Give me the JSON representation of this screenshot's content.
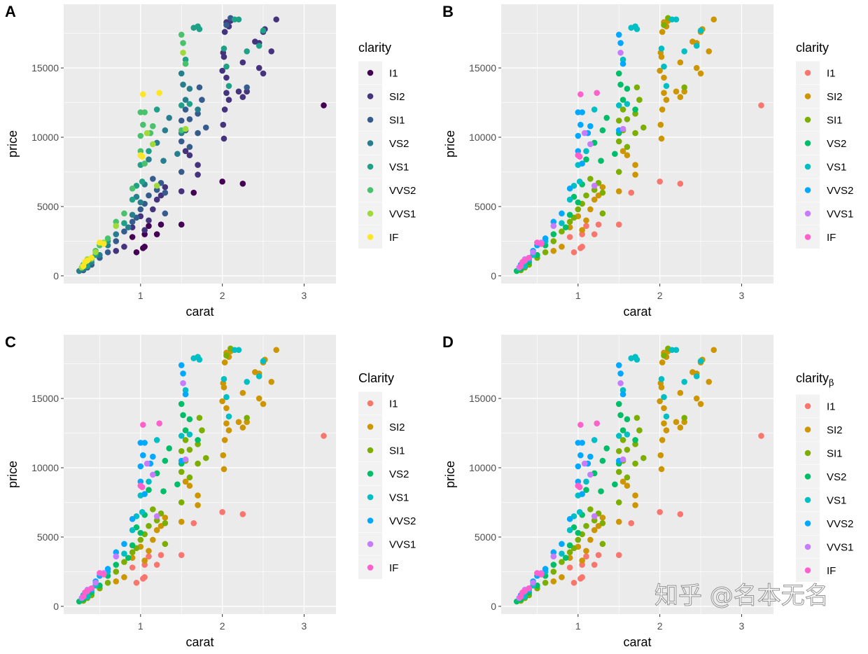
{
  "chart_data": {
    "type": "scatter",
    "xlabel": "carat",
    "ylabel": "price",
    "xlim": [
      0.06,
      3.39
    ],
    "ylim": [
      -560,
      19600
    ],
    "xticks": [
      1,
      2,
      3
    ],
    "yticks": [
      0,
      5000,
      10000,
      15000
    ],
    "xtick_labels": [
      "1",
      "2",
      "3"
    ],
    "ytick_labels": [
      "0",
      "5000",
      "10000",
      "15000"
    ],
    "grid": true,
    "legend_position": "right",
    "panels": [
      {
        "label": "A",
        "legend_title": "clarity",
        "legend_subscript": "",
        "palette": [
          "#440154",
          "#46337E",
          "#365C8D",
          "#277F8E",
          "#1FA187",
          "#4AC16D",
          "#9FDA3A",
          "#FDE725"
        ]
      },
      {
        "label": "B",
        "legend_title": "clarity",
        "legend_subscript": "",
        "palette": [
          "#F8766D",
          "#CD9600",
          "#7CAE00",
          "#00BE67",
          "#00BFC4",
          "#00A9FF",
          "#C77CFF",
          "#FF61CC"
        ]
      },
      {
        "label": "C",
        "legend_title": "Clarity",
        "legend_subscript": "",
        "palette": [
          "#F8766D",
          "#CD9600",
          "#7CAE00",
          "#00BE67",
          "#00BFC4",
          "#00A9FF",
          "#C77CFF",
          "#FF61CC"
        ]
      },
      {
        "label": "D",
        "legend_title": "clarity",
        "legend_subscript": "β",
        "palette": [
          "#F8766D",
          "#CD9600",
          "#7CAE00",
          "#00BE67",
          "#00BFC4",
          "#00A9FF",
          "#C77CFF",
          "#FF61CC"
        ]
      }
    ],
    "series": [
      {
        "name": "I1",
        "points": [
          [
            3.24,
            12300
          ],
          [
            2.0,
            6800
          ],
          [
            2.25,
            6650
          ],
          [
            1.65,
            6000
          ],
          [
            1.5,
            3700
          ],
          [
            1.25,
            3700
          ],
          [
            1.1,
            3600
          ],
          [
            1.05,
            3000
          ],
          [
            1.2,
            3000
          ],
          [
            0.95,
            1700
          ],
          [
            1.05,
            2100
          ],
          [
            1.03,
            2000
          ],
          [
            0.9,
            2800
          ]
        ]
      },
      {
        "name": "SI2",
        "points": [
          [
            2.66,
            18500
          ],
          [
            2.5,
            17600
          ],
          [
            2.52,
            17800
          ],
          [
            2.4,
            16900
          ],
          [
            2.45,
            16800
          ],
          [
            2.6,
            16200
          ],
          [
            2.05,
            18300
          ],
          [
            2.08,
            18000
          ],
          [
            2.1,
            18400
          ],
          [
            2.03,
            17600
          ],
          [
            2.02,
            15800
          ],
          [
            2.01,
            16100
          ],
          [
            2.0,
            14800
          ],
          [
            2.05,
            14300
          ],
          [
            2.25,
            15400
          ],
          [
            2.5,
            14600
          ],
          [
            2.45,
            15000
          ],
          [
            2.2,
            13300
          ],
          [
            2.3,
            13300
          ],
          [
            2.25,
            12900
          ],
          [
            2.05,
            13200
          ],
          [
            2.08,
            12700
          ],
          [
            2.03,
            12000
          ],
          [
            2.01,
            10900
          ],
          [
            2.02,
            9900
          ],
          [
            1.7,
            8000
          ],
          [
            1.7,
            7300
          ],
          [
            1.55,
            9000
          ],
          [
            1.6,
            8700
          ],
          [
            1.5,
            6100
          ],
          [
            1.3,
            6400
          ],
          [
            1.2,
            5500
          ],
          [
            1.15,
            4800
          ],
          [
            1.1,
            4000
          ],
          [
            1.0,
            4300
          ],
          [
            0.9,
            3500
          ],
          [
            0.8,
            2100
          ],
          [
            0.7,
            1800
          ],
          [
            1.25,
            5800
          ],
          [
            1.05,
            3300
          ]
        ]
      },
      {
        "name": "SI1",
        "points": [
          [
            2.1,
            18600
          ],
          [
            2.05,
            18100
          ],
          [
            2.3,
            13600
          ],
          [
            1.72,
            13600
          ],
          [
            1.75,
            12700
          ],
          [
            1.7,
            11700
          ],
          [
            1.6,
            11300
          ],
          [
            1.55,
            12000
          ],
          [
            1.5,
            11200
          ],
          [
            1.55,
            10500
          ],
          [
            1.7,
            10300
          ],
          [
            1.8,
            10700
          ],
          [
            1.5,
            9700
          ],
          [
            1.6,
            9300
          ],
          [
            1.5,
            7500
          ],
          [
            1.3,
            6000
          ],
          [
            1.25,
            6700
          ],
          [
            1.2,
            6200
          ],
          [
            1.1,
            5800
          ],
          [
            1.05,
            5200
          ],
          [
            1.0,
            4800
          ],
          [
            0.95,
            4200
          ],
          [
            0.9,
            3900
          ],
          [
            0.8,
            3200
          ],
          [
            0.7,
            2500
          ],
          [
            0.6,
            1700
          ],
          [
            0.5,
            1300
          ],
          [
            0.4,
            800
          ],
          [
            0.35,
            600
          ],
          [
            0.3,
            400
          ],
          [
            1.15,
            7000
          ],
          [
            1.3,
            4500
          ]
        ]
      },
      {
        "name": "VS2",
        "points": [
          [
            1.5,
            14600
          ],
          [
            1.52,
            13800
          ],
          [
            1.55,
            12700
          ],
          [
            1.6,
            13500
          ],
          [
            1.5,
            10300
          ],
          [
            1.3,
            10500
          ],
          [
            1.35,
            11400
          ],
          [
            1.2,
            9600
          ],
          [
            1.28,
            8300
          ],
          [
            1.1,
            8400
          ],
          [
            1.05,
            6600
          ],
          [
            1.0,
            5300
          ],
          [
            0.95,
            5700
          ],
          [
            0.9,
            4400
          ],
          [
            0.85,
            3500
          ],
          [
            0.7,
            3000
          ],
          [
            0.6,
            2200
          ],
          [
            0.5,
            1500
          ],
          [
            0.4,
            1000
          ],
          [
            0.3,
            500
          ],
          [
            0.25,
            350
          ],
          [
            1.7,
            12000
          ],
          [
            1.45,
            8800
          ]
        ]
      },
      {
        "name": "VS1",
        "points": [
          [
            1.65,
            17900
          ],
          [
            1.7,
            18000
          ],
          [
            1.72,
            17800
          ],
          [
            2.15,
            18500
          ],
          [
            2.2,
            18500
          ],
          [
            2.02,
            16400
          ],
          [
            2.05,
            15100
          ],
          [
            2.08,
            13700
          ],
          [
            2.45,
            16600
          ],
          [
            2.5,
            17700
          ],
          [
            2.3,
            16200
          ],
          [
            1.55,
            15600
          ],
          [
            1.5,
            12300
          ],
          [
            1.6,
            12400
          ],
          [
            1.2,
            12000
          ],
          [
            1.1,
            9000
          ],
          [
            1.0,
            8000
          ],
          [
            0.95,
            6500
          ],
          [
            0.9,
            5500
          ],
          [
            0.8,
            3800
          ],
          [
            0.6,
            2500
          ],
          [
            0.45,
            1500
          ],
          [
            0.35,
            700
          ],
          [
            1.02,
            6800
          ]
        ]
      },
      {
        "name": "VVS2",
        "points": [
          [
            1.5,
            17400
          ],
          [
            1.52,
            16800
          ],
          [
            1.55,
            15300
          ],
          [
            1.0,
            11800
          ],
          [
            1.05,
            11800
          ],
          [
            1.03,
            10900
          ],
          [
            1.0,
            10100
          ],
          [
            1.15,
            10800
          ],
          [
            1.12,
            10300
          ],
          [
            1.0,
            9000
          ],
          [
            1.05,
            8100
          ],
          [
            0.9,
            6300
          ],
          [
            0.8,
            4500
          ],
          [
            0.7,
            3900
          ],
          [
            0.6,
            2700
          ],
          [
            0.5,
            2200
          ],
          [
            0.45,
            1800
          ],
          [
            0.4,
            1200
          ],
          [
            0.3,
            800
          ],
          [
            1.5,
            10500
          ]
        ]
      },
      {
        "name": "VVS1",
        "points": [
          [
            1.52,
            16100
          ],
          [
            1.55,
            10600
          ],
          [
            1.15,
            9500
          ],
          [
            1.0,
            8700
          ],
          [
            1.2,
            6500
          ],
          [
            0.7,
            3600
          ],
          [
            0.55,
            2400
          ],
          [
            0.45,
            1700
          ],
          [
            0.35,
            1200
          ],
          [
            0.28,
            600
          ],
          [
            1.08,
            10300
          ]
        ]
      },
      {
        "name": "IF",
        "points": [
          [
            1.03,
            13100
          ],
          [
            1.23,
            13200
          ],
          [
            1.0,
            8700
          ],
          [
            1.02,
            8600
          ],
          [
            0.55,
            2300
          ],
          [
            0.5,
            2400
          ],
          [
            0.4,
            1300
          ],
          [
            0.35,
            1100
          ],
          [
            0.32,
            1000
          ],
          [
            0.3,
            700
          ]
        ]
      }
    ]
  },
  "watermark": "知乎 @名本无名"
}
